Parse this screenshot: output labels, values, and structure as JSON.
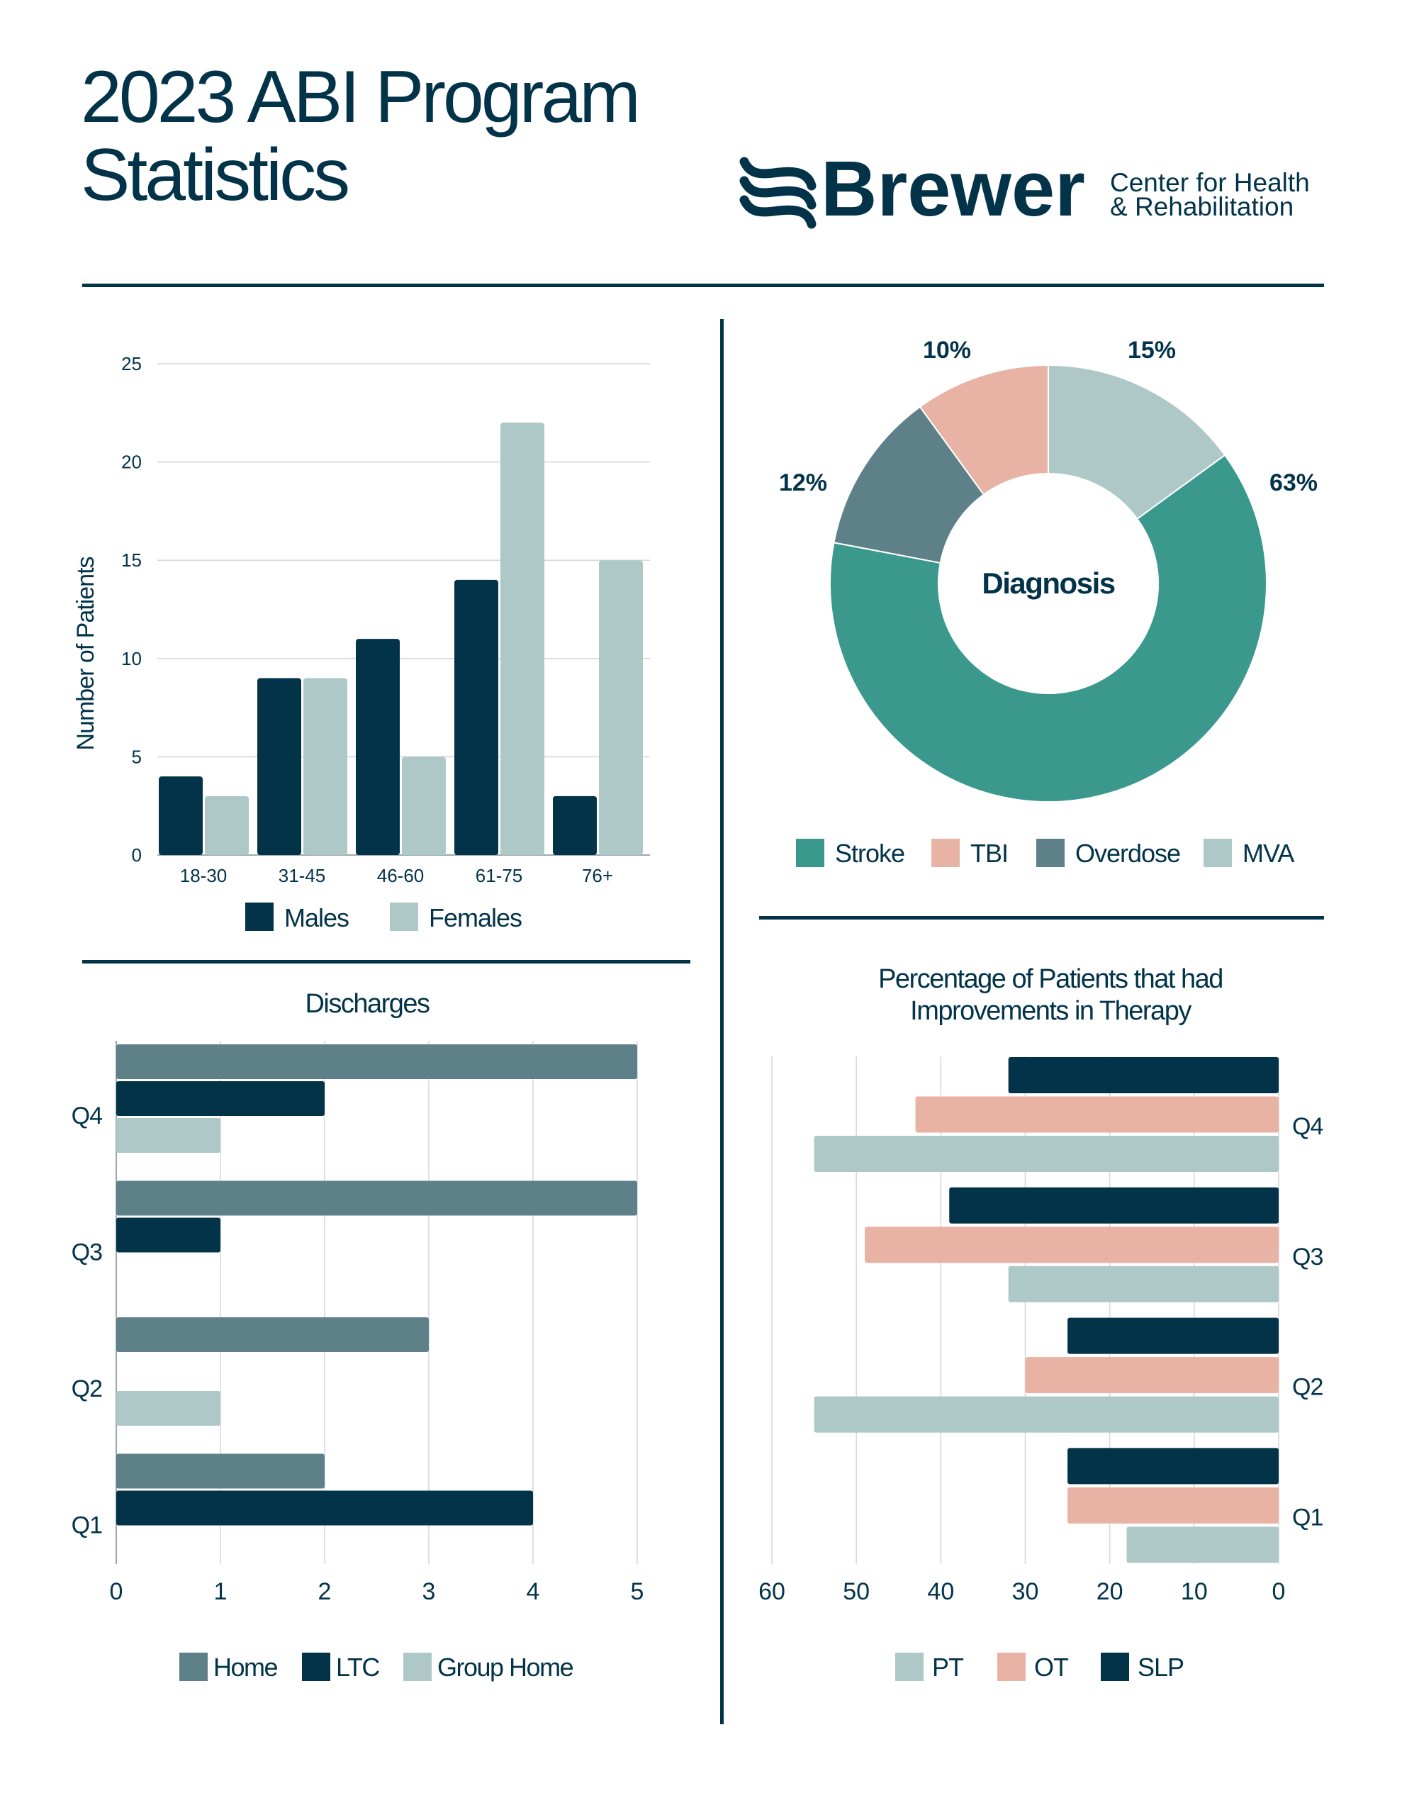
{
  "header": {
    "title_line1": "2023 ABI Program",
    "title_line2": "Statistics",
    "logo": {
      "name": "Brewer",
      "subtitle_line1": "Center for Health",
      "subtitle_line2": "& Rehabilitation",
      "icon": "wave-icon"
    }
  },
  "colors": {
    "navy": "#023349",
    "light_teal": "#aec8c7",
    "slate": "#5e8089",
    "teal": "#3a998c",
    "salmon": "#e8b3a4"
  },
  "chart_data": [
    {
      "type": "bar",
      "ylabel": "Number of Patients",
      "categories": [
        "18-30",
        "31-45",
        "46-60",
        "61-75",
        "76+"
      ],
      "ylim": [
        0,
        25
      ],
      "yticks": [
        "0",
        "5",
        "10",
        "15",
        "20",
        "25"
      ],
      "grid": true,
      "legend_placement": "bottom",
      "series": [
        {
          "name": "Males",
          "values": [
            4,
            9,
            11,
            14,
            3
          ],
          "color": "#023349"
        },
        {
          "name": "Females",
          "values": [
            3,
            9,
            5,
            22,
            15
          ],
          "color": "#aec8c7"
        }
      ]
    },
    {
      "type": "pie",
      "center_label": "Diagnosis",
      "donut": true,
      "legend_placement": "bottom",
      "slices": [
        {
          "name": "Stroke",
          "value": 63,
          "label": "63%",
          "color": "#3a998c"
        },
        {
          "name": "TBI",
          "value": 10,
          "label": "10%",
          "color": "#e8b3a4"
        },
        {
          "name": "Overdose",
          "value": 12,
          "label": "12%",
          "color": "#5e8089"
        },
        {
          "name": "MVA",
          "value": 15,
          "label": "15%",
          "color": "#aec8c7"
        }
      ]
    },
    {
      "type": "bar",
      "orientation": "horizontal",
      "title": "Discharges",
      "categories": [
        "Q4",
        "Q3",
        "Q2",
        "Q1"
      ],
      "xlim": [
        0,
        5
      ],
      "xticks": [
        "0",
        "1",
        "2",
        "3",
        "4",
        "5"
      ],
      "grid": true,
      "legend_placement": "bottom",
      "series": [
        {
          "name": "Home",
          "values": [
            5,
            5,
            3,
            2
          ],
          "color": "#5e8089"
        },
        {
          "name": "LTC",
          "values": [
            2,
            1,
            0,
            4
          ],
          "color": "#023349"
        },
        {
          "name": "Group Home",
          "values": [
            1,
            0,
            1,
            0
          ],
          "color": "#aec8c7"
        }
      ]
    },
    {
      "type": "bar",
      "orientation": "horizontal",
      "x_reversed": true,
      "title_line1": "Percentage of Patients that had",
      "title_line2": "Improvements in Therapy",
      "categories": [
        "Q4",
        "Q3",
        "Q2",
        "Q1"
      ],
      "xlim": [
        0,
        60
      ],
      "xticks": [
        "0",
        "10",
        "20",
        "30",
        "40",
        "50",
        "60"
      ],
      "grid": true,
      "legend_placement": "bottom",
      "series": [
        {
          "name": "SLP",
          "values": [
            32,
            39,
            25,
            25
          ],
          "color": "#023349"
        },
        {
          "name": "OT",
          "values": [
            43,
            49,
            30,
            25
          ],
          "color": "#e8b3a4"
        },
        {
          "name": "PT",
          "values": [
            55,
            32,
            55,
            18
          ],
          "color": "#aec8c7"
        }
      ],
      "legend_order": [
        "PT",
        "OT",
        "SLP"
      ]
    }
  ]
}
